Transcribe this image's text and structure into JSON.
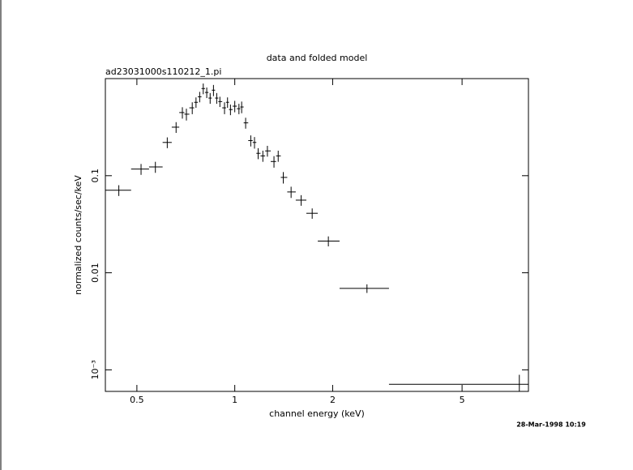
{
  "chart_data": {
    "type": "errorbar",
    "title": "data and folded model",
    "subtitle": "ad23031000s110212_1.pi",
    "x_label": "channel energy (keV)",
    "y_label": "normalized counts/sec/keV",
    "timestamp": "28-Mar-1998 10:19",
    "xscale": "log",
    "yscale": "log",
    "xlim": [
      0.4,
      8
    ],
    "ylim": [
      0.0006,
      1
    ],
    "xticks": [
      0.5,
      1,
      2,
      5
    ],
    "yticks": [
      {
        "value": 0.001,
        "label": "10⁻³"
      },
      0.01,
      0.1
    ],
    "color": "#000000",
    "x": [
      0.44,
      0.515,
      0.57,
      0.62,
      0.66,
      0.69,
      0.71,
      0.74,
      0.76,
      0.78,
      0.8,
      0.82,
      0.84,
      0.86,
      0.88,
      0.9,
      0.93,
      0.95,
      0.97,
      1.0,
      1.03,
      1.05,
      1.08,
      1.12,
      1.15,
      1.18,
      1.22,
      1.26,
      1.32,
      1.36,
      1.41,
      1.49,
      1.6,
      1.73,
      1.94,
      2.55,
      7.5
    ],
    "x_low": [
      0.4,
      0.48,
      0.545,
      0.6,
      0.64,
      0.675,
      0.7,
      0.725,
      0.75,
      0.77,
      0.79,
      0.81,
      0.83,
      0.85,
      0.87,
      0.89,
      0.915,
      0.94,
      0.96,
      0.985,
      1.015,
      1.04,
      1.065,
      1.1,
      1.135,
      1.165,
      1.2,
      1.24,
      1.29,
      1.34,
      1.385,
      1.45,
      1.54,
      1.66,
      1.8,
      2.1,
      2.98
    ],
    "x_high": [
      0.48,
      0.545,
      0.6,
      0.64,
      0.675,
      0.7,
      0.725,
      0.75,
      0.77,
      0.79,
      0.81,
      0.83,
      0.85,
      0.87,
      0.89,
      0.915,
      0.94,
      0.96,
      0.985,
      1.015,
      1.04,
      1.065,
      1.1,
      1.135,
      1.165,
      1.2,
      1.24,
      1.29,
      1.34,
      1.385,
      1.45,
      1.54,
      1.66,
      1.8,
      2.1,
      2.98,
      8.0
    ],
    "values": [
      0.0708,
      0.117,
      0.123,
      0.22,
      0.316,
      0.447,
      0.43,
      0.5,
      0.57,
      0.65,
      0.79,
      0.72,
      0.63,
      0.76,
      0.63,
      0.58,
      0.5,
      0.57,
      0.48,
      0.52,
      0.49,
      0.51,
      0.35,
      0.23,
      0.22,
      0.17,
      0.16,
      0.18,
      0.14,
      0.16,
      0.096,
      0.068,
      0.056,
      0.041,
      0.0212,
      0.0069,
      0.00071
    ],
    "yerr": [
      0.009,
      0.015,
      0.016,
      0.028,
      0.04,
      0.06,
      0.06,
      0.07,
      0.07,
      0.08,
      0.1,
      0.09,
      0.08,
      0.1,
      0.08,
      0.07,
      0.07,
      0.07,
      0.06,
      0.07,
      0.06,
      0.07,
      0.045,
      0.03,
      0.03,
      0.022,
      0.021,
      0.023,
      0.019,
      0.021,
      0.013,
      0.009,
      0.007,
      0.005,
      0.0025,
      0.0007,
      0.00018
    ]
  }
}
